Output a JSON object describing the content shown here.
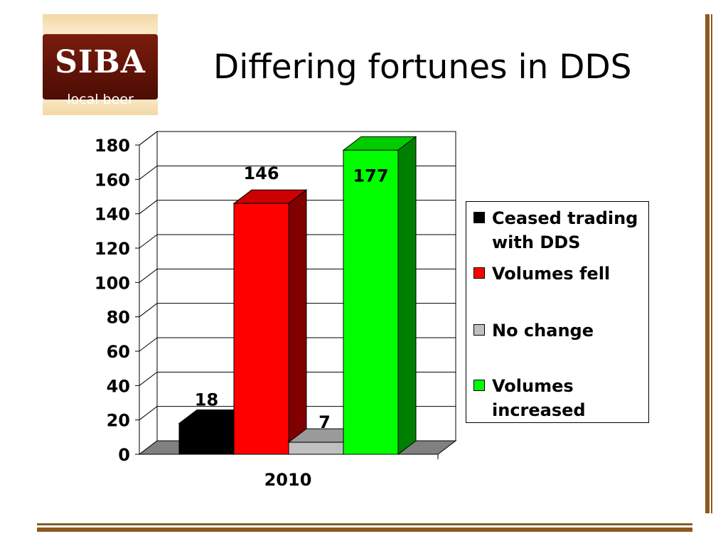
{
  "logo": {
    "name": "SIBA",
    "tagline": "local beer"
  },
  "title": "Differing fortunes in DDS",
  "chart_data": {
    "type": "bar",
    "categories": [
      "2010"
    ],
    "series": [
      {
        "name": "Ceased trading with DDS",
        "values": [
          18
        ],
        "color": "#000000"
      },
      {
        "name": "Volumes fell",
        "values": [
          146
        ],
        "color": "#ff0000"
      },
      {
        "name": "No change",
        "values": [
          7
        ],
        "color": "#c0c0c0"
      },
      {
        "name": "Volumes increased",
        "values": [
          177
        ],
        "color": "#00ff00"
      }
    ],
    "ylim": [
      0,
      180
    ],
    "yticks": [
      0,
      20,
      40,
      60,
      80,
      100,
      120,
      140,
      160,
      180
    ],
    "grid": true,
    "three_d": true,
    "legend_position": "right",
    "data_labels": [
      "18",
      "146",
      "7",
      "177"
    ]
  }
}
